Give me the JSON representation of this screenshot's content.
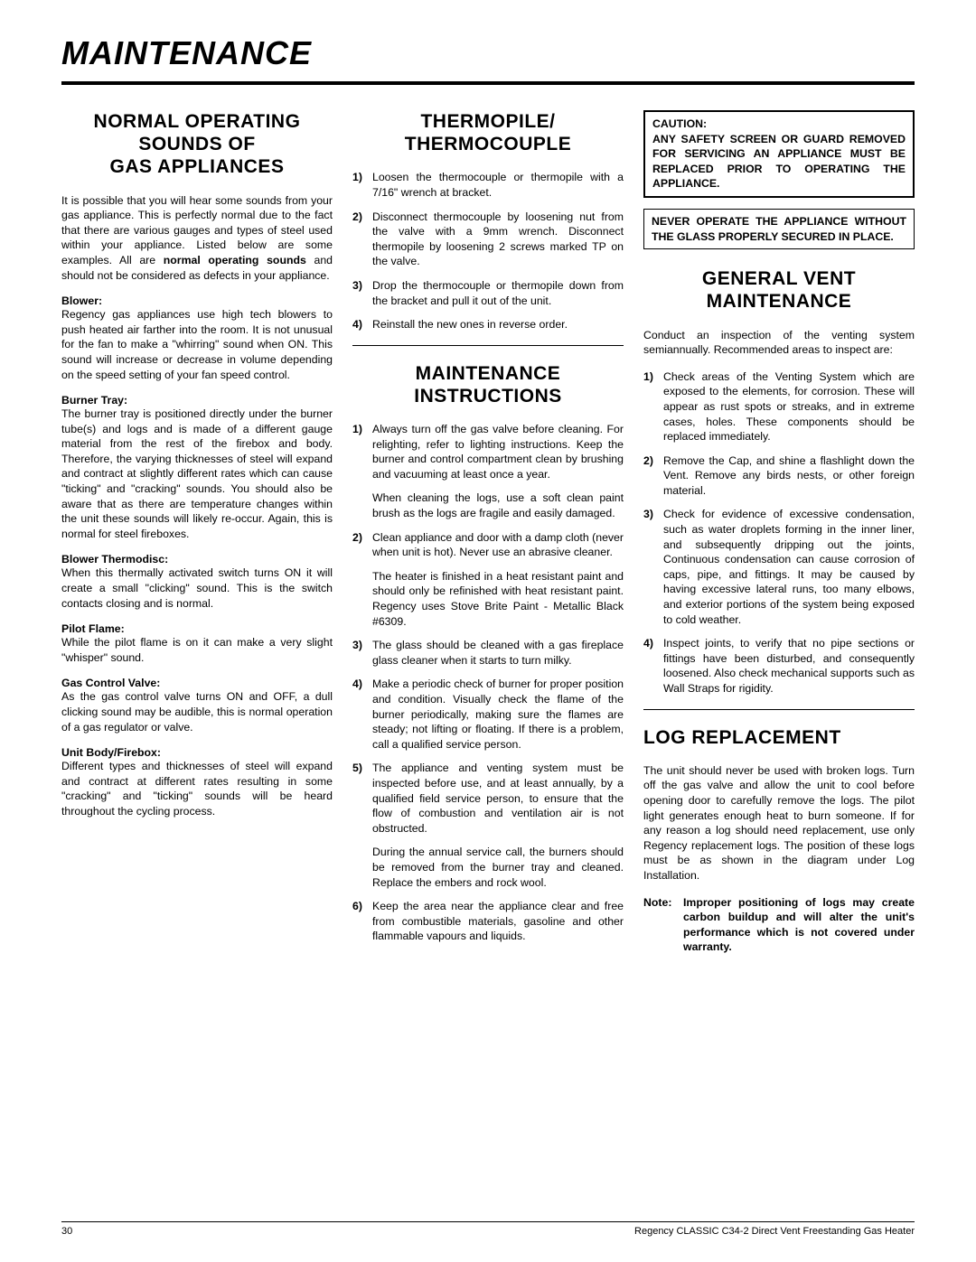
{
  "page_title": "MAINTENANCE",
  "col1": {
    "section_title_l1": "NORMAL OPERATING",
    "section_title_l2": "SOUNDS OF",
    "section_title_l3": "GAS APPLIANCES",
    "intro_a": "It is possible that you will hear some sounds from your gas appliance. This is perfectly normal due to the fact that there are various gauges and types of steel used within your appliance. Listed below are some examples. All are ",
    "intro_b": "normal operating sounds",
    "intro_c": " and should not be considered as defects in your appliance.",
    "blower_head": "Blower:",
    "blower_text": "Regency gas appliances use high tech blowers to push heated air farther into the room. It is not unusual for the fan to make a \"whirring\" sound when ON. This sound will increase or decrease in volume depending on the speed setting of your fan speed control.",
    "burner_head": "Burner Tray:",
    "burner_text": "The burner tray is positioned directly under the burner tube(s) and logs and is made of a different gauge material from the rest of the firebox and body. Therefore, the varying thicknesses of steel will expand and contract at slightly different rates which can cause \"ticking\" and \"cracking\" sounds. You should also be aware that as there are temperature changes within the unit these sounds will likely re-occur. Again, this is normal for steel fireboxes.",
    "thermo_head": "Blower Thermodisc:",
    "thermo_text": "When this thermally activated switch turns ON it will create a small \"clicking\" sound. This is the switch contacts closing and is normal.",
    "pilot_head": "Pilot Flame:",
    "pilot_text": "While the pilot flame is on it can make a very slight \"whisper\" sound.",
    "valve_head": "Gas Control Valve:",
    "valve_text": "As the gas control valve turns ON and OFF, a dull clicking sound may be audible, this is normal operation of a gas regulator or valve.",
    "body_head": "Unit Body/Firebox:",
    "body_text": "Different types and thicknesses of steel will expand and contract at different rates resulting in some \"cracking\" and \"ticking\" sounds will be heard throughout the cycling process."
  },
  "col2": {
    "s1_title_l1": "THERMOPILE/",
    "s1_title_l2": "THERMOCOUPLE",
    "s1_items": [
      "Loosen the thermocouple or thermopile with a 7/16\" wrench at bracket.",
      "Disconnect thermocouple by loosening nut from the valve with a 9mm wrench. Disconnect thermopile by loosening 2 screws marked TP on the valve.",
      "Drop the thermocouple or thermopile down from the bracket and pull it out of the unit.",
      "Reinstall the new ones in reverse order."
    ],
    "s2_title_l1": "MAINTENANCE",
    "s2_title_l2": "INSTRUCTIONS",
    "s2_i1": "Always turn off the gas valve before cleaning. For relighting, refer to lighting instructions. Keep the burner and control compartment clean by brushing and vacuuming at least once a year.",
    "s2_i1b": "When cleaning the logs, use a soft clean paint brush as the logs are fragile and easily damaged.",
    "s2_i2": "Clean appliance and door with a damp cloth (never when unit is hot). Never use an abrasive cleaner.",
    "s2_i2b": "The heater is finished in a heat resistant paint and should only be refinished with heat resistant paint. Regency uses Stove Brite Paint - Metallic Black #6309.",
    "s2_i3": "The glass should be cleaned with a gas fireplace glass cleaner when it starts to turn milky.",
    "s2_i4": "Make a periodic check of burner for proper position and condition. Visually check the flame of the burner periodically, making sure the flames are steady; not lifting or floating. If there is a problem, call a qualified service person.",
    "s2_i5": "The appliance and venting system must be inspected before use, and at least annually, by a qualified field service person, to ensure that the flow of combustion and ventilation air is not obstructed.",
    "s2_i5b": "During the annual service call, the burners should be removed from the burner tray and cleaned. Replace the embers and rock wool.",
    "s2_i6": "Keep the area near the appliance clear and free from combustible materials, gasoline and other flammable vapours and liquids."
  },
  "col3": {
    "caution_head": "CAUTION:",
    "caution_text": "ANY SAFETY SCREEN OR GUARD REMOVED FOR SERVICING AN APPLIANCE MUST BE REPLACED PRIOR TO OPERATING THE APPLIANCE.",
    "warning_text": "NEVER OPERATE THE APPLIANCE WITHOUT THE GLASS PROPERLY SECURED IN PLACE.",
    "s1_title_l1": "GENERAL VENT",
    "s1_title_l2": "MAINTENANCE",
    "s1_intro": "Conduct an inspection of the venting system semiannually. Recommended areas to inspect are:",
    "s1_items": [
      "Check areas of the Venting System which are exposed to the elements, for corrosion. These will appear as rust spots or streaks, and in extreme cases, holes. These components should be replaced immediately.",
      "Remove the Cap, and shine a flashlight down the Vent. Remove any birds nests, or other foreign material.",
      "Check for evidence of excessive condensation, such as water droplets forming in the inner liner, and subsequently dripping out the joints, Continuous condensation can cause corrosion of caps, pipe, and fittings. It may be caused by having excessive lateral runs, too many elbows, and exterior portions of the system being exposed to cold weather.",
      "Inspect joints, to verify that no pipe sections or fittings have been disturbed, and consequently loosened. Also check mechanical supports such as Wall Straps for rigidity."
    ],
    "s2_title": "LOG REPLACEMENT",
    "s2_text": "The unit should never be used with broken logs. Turn off the gas valve and allow the unit to cool before opening door to carefully remove the logs. The pilot light generates enough heat to burn someone. If for any reason a log should need replacement, use only Regency replacement logs. The position of these logs must be as shown in the diagram under Log Installation.",
    "note_lbl": "Note:",
    "note_text": "Improper positioning of logs may create carbon buildup and will alter the unit's performance which is not covered under warranty."
  },
  "footer": {
    "page": "30",
    "right": "Regency CLASSIC C34-2 Direct Vent Freestanding Gas Heater"
  }
}
